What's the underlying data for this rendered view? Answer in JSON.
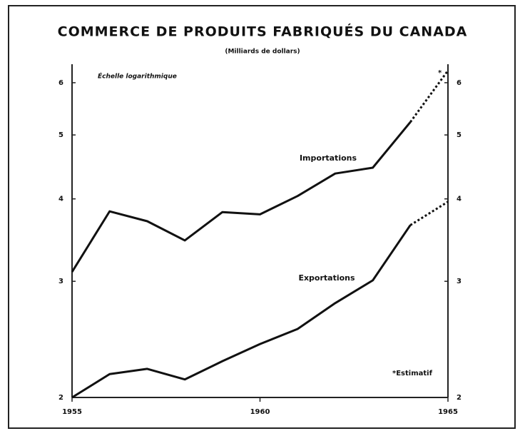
{
  "chart_data": {
    "type": "line",
    "title": "COMMERCE DE PRODUITS FABRIQUÉS DU CANADA",
    "subtitle": "(Milliards de dollars)",
    "scale_note": "Échelle logarithmique",
    "footnote": "*Estimatif",
    "estimate_marker": "*",
    "log_scale": true,
    "x": [
      1955,
      1956,
      1957,
      1958,
      1959,
      1960,
      1961,
      1962,
      1963,
      1964,
      1965
    ],
    "estimated": [
      false,
      false,
      false,
      false,
      false,
      false,
      false,
      false,
      false,
      false,
      true
    ],
    "xlim": [
      1955,
      1965
    ],
    "xticks": [
      1955,
      1960,
      1965
    ],
    "ylim": [
      2,
      6.4
    ],
    "yticks": [
      2,
      3,
      4,
      5,
      6
    ],
    "series": [
      {
        "name": "Importations",
        "color": "#111111",
        "values": [
          3.1,
          3.83,
          3.7,
          3.46,
          3.82,
          3.79,
          4.04,
          4.37,
          4.46,
          5.23,
          6.26
        ]
      },
      {
        "name": "Exportations",
        "color": "#111111",
        "values": [
          2.0,
          2.17,
          2.21,
          2.13,
          2.27,
          2.41,
          2.54,
          2.78,
          3.01,
          3.65,
          3.96
        ]
      }
    ]
  }
}
